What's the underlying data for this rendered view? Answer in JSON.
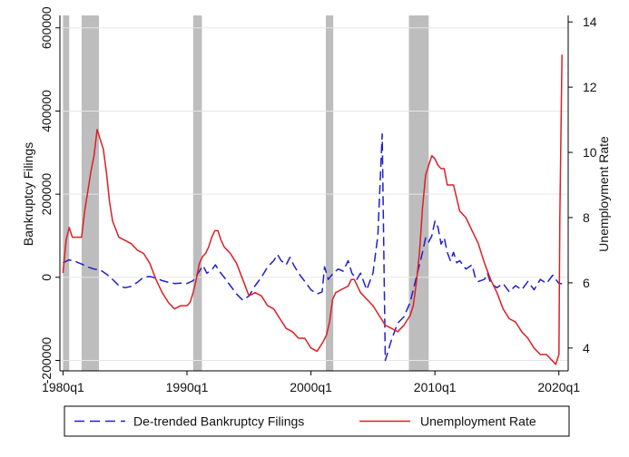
{
  "chart_data": {
    "type": "line",
    "xlabel": "",
    "x_ticks": [
      "1980q1",
      "1990q1",
      "2000q1",
      "2010q1",
      "2020q1"
    ],
    "y_left": {
      "label": "Bankruptcy Filings",
      "lim": [
        -225000,
        630000
      ],
      "ticks": [
        -200000,
        0,
        200000,
        400000,
        600000
      ],
      "tick_labels": [
        "-200000",
        "0",
        "200000",
        "400000",
        "600000"
      ]
    },
    "y_right": {
      "label": "Unemployment Rate",
      "lim": [
        3.3,
        14.2
      ],
      "ticks": [
        4,
        6,
        8,
        10,
        12,
        14
      ],
      "tick_labels": [
        "4",
        "6",
        "8",
        "10",
        "12",
        "14"
      ]
    },
    "recessions": [
      [
        1980.0,
        1980.5
      ],
      [
        1981.5,
        1982.9
      ],
      [
        1990.5,
        1991.2
      ],
      [
        2001.2,
        2001.8
      ],
      [
        2007.9,
        2009.5
      ]
    ],
    "series": [
      {
        "name": "De-trended Bankruptcy Filings",
        "axis": "left",
        "color": "#1f1fcc",
        "dash": "dashed",
        "points": [
          [
            1980.0,
            35000
          ],
          [
            1980.5,
            42000
          ],
          [
            1981.0,
            38000
          ],
          [
            1981.5,
            32000
          ],
          [
            1982.0,
            25000
          ],
          [
            1982.5,
            20000
          ],
          [
            1983.0,
            18000
          ],
          [
            1983.5,
            8000
          ],
          [
            1984.0,
            -5000
          ],
          [
            1984.5,
            -20000
          ],
          [
            1985.0,
            -25000
          ],
          [
            1985.5,
            -22000
          ],
          [
            1986.0,
            -12000
          ],
          [
            1986.5,
            0
          ],
          [
            1987.0,
            2000
          ],
          [
            1987.5,
            -2000
          ],
          [
            1988.0,
            -8000
          ],
          [
            1988.5,
            -12000
          ],
          [
            1989.0,
            -15000
          ],
          [
            1989.5,
            -14000
          ],
          [
            1990.0,
            -15000
          ],
          [
            1990.5,
            -8000
          ],
          [
            1991.0,
            15000
          ],
          [
            1991.3,
            28000
          ],
          [
            1991.6,
            10000
          ],
          [
            1992.0,
            18000
          ],
          [
            1992.3,
            30000
          ],
          [
            1992.6,
            15000
          ],
          [
            1993.0,
            0
          ],
          [
            1993.5,
            -20000
          ],
          [
            1994.0,
            -40000
          ],
          [
            1994.5,
            -55000
          ],
          [
            1995.0,
            -45000
          ],
          [
            1995.5,
            -20000
          ],
          [
            1996.0,
            0
          ],
          [
            1996.5,
            25000
          ],
          [
            1997.0,
            40000
          ],
          [
            1997.3,
            55000
          ],
          [
            1997.6,
            40000
          ],
          [
            1998.0,
            30000
          ],
          [
            1998.3,
            48000
          ],
          [
            1998.6,
            30000
          ],
          [
            1999.0,
            10000
          ],
          [
            1999.5,
            -10000
          ],
          [
            2000.0,
            -30000
          ],
          [
            2000.5,
            -40000
          ],
          [
            2000.9,
            -35000
          ],
          [
            2001.1,
            25000
          ],
          [
            2001.4,
            -5000
          ],
          [
            2001.8,
            10000
          ],
          [
            2002.2,
            20000
          ],
          [
            2002.6,
            15000
          ],
          [
            2003.0,
            40000
          ],
          [
            2003.3,
            10000
          ],
          [
            2003.7,
            -5000
          ],
          [
            2004.0,
            10000
          ],
          [
            2004.5,
            -30000
          ],
          [
            2005.0,
            10000
          ],
          [
            2005.4,
            100000
          ],
          [
            2005.75,
            345000
          ],
          [
            2006.0,
            -200000
          ],
          [
            2006.5,
            -150000
          ],
          [
            2007.0,
            -110000
          ],
          [
            2007.5,
            -95000
          ],
          [
            2008.0,
            -60000
          ],
          [
            2008.5,
            0
          ],
          [
            2009.0,
            60000
          ],
          [
            2009.25,
            95000
          ],
          [
            2009.5,
            85000
          ],
          [
            2009.75,
            100000
          ],
          [
            2010.0,
            135000
          ],
          [
            2010.25,
            120000
          ],
          [
            2010.5,
            80000
          ],
          [
            2010.75,
            95000
          ],
          [
            2011.0,
            60000
          ],
          [
            2011.25,
            40000
          ],
          [
            2011.5,
            60000
          ],
          [
            2011.75,
            35000
          ],
          [
            2012.0,
            40000
          ],
          [
            2012.5,
            20000
          ],
          [
            2013.0,
            30000
          ],
          [
            2013.25,
            0
          ],
          [
            2013.5,
            -10000
          ],
          [
            2014.0,
            -5000
          ],
          [
            2014.25,
            10000
          ],
          [
            2014.5,
            -15000
          ],
          [
            2015.0,
            -25000
          ],
          [
            2015.5,
            -15000
          ],
          [
            2016.0,
            -35000
          ],
          [
            2016.5,
            -20000
          ],
          [
            2017.0,
            -30000
          ],
          [
            2017.5,
            -10000
          ],
          [
            2018.0,
            -30000
          ],
          [
            2018.5,
            -5000
          ],
          [
            2019.0,
            -15000
          ],
          [
            2019.5,
            5000
          ],
          [
            2020.0,
            -15000
          ],
          [
            2020.25,
            -15000
          ]
        ]
      },
      {
        "name": "Unemployment Rate",
        "axis": "right",
        "color": "#dd1f26",
        "dash": "solid",
        "points": [
          [
            1980.0,
            6.3
          ],
          [
            1980.25,
            7.3
          ],
          [
            1980.5,
            7.7
          ],
          [
            1980.75,
            7.4
          ],
          [
            1981.0,
            7.4
          ],
          [
            1981.25,
            7.4
          ],
          [
            1981.5,
            7.4
          ],
          [
            1981.75,
            8.2
          ],
          [
            1982.0,
            8.8
          ],
          [
            1982.25,
            9.4
          ],
          [
            1982.5,
            9.9
          ],
          [
            1982.75,
            10.7
          ],
          [
            1983.0,
            10.4
          ],
          [
            1983.25,
            10.1
          ],
          [
            1983.5,
            9.4
          ],
          [
            1983.75,
            8.5
          ],
          [
            1984.0,
            7.9
          ],
          [
            1984.5,
            7.4
          ],
          [
            1985.0,
            7.3
          ],
          [
            1985.5,
            7.2
          ],
          [
            1986.0,
            7.0
          ],
          [
            1986.5,
            6.9
          ],
          [
            1987.0,
            6.6
          ],
          [
            1987.5,
            6.1
          ],
          [
            1988.0,
            5.7
          ],
          [
            1988.5,
            5.4
          ],
          [
            1989.0,
            5.2
          ],
          [
            1989.5,
            5.3
          ],
          [
            1990.0,
            5.3
          ],
          [
            1990.25,
            5.4
          ],
          [
            1990.5,
            5.7
          ],
          [
            1990.75,
            6.1
          ],
          [
            1991.0,
            6.6
          ],
          [
            1991.25,
            6.8
          ],
          [
            1991.5,
            6.9
          ],
          [
            1991.75,
            7.1
          ],
          [
            1992.0,
            7.4
          ],
          [
            1992.25,
            7.6
          ],
          [
            1992.5,
            7.6
          ],
          [
            1992.75,
            7.3
          ],
          [
            1993.0,
            7.1
          ],
          [
            1993.5,
            6.9
          ],
          [
            1994.0,
            6.6
          ],
          [
            1994.5,
            6.1
          ],
          [
            1995.0,
            5.6
          ],
          [
            1995.5,
            5.7
          ],
          [
            1996.0,
            5.6
          ],
          [
            1996.5,
            5.3
          ],
          [
            1997.0,
            5.2
          ],
          [
            1997.5,
            4.9
          ],
          [
            1998.0,
            4.6
          ],
          [
            1998.5,
            4.5
          ],
          [
            1999.0,
            4.3
          ],
          [
            1999.5,
            4.3
          ],
          [
            2000.0,
            4.0
          ],
          [
            2000.5,
            3.9
          ],
          [
            2001.0,
            4.2
          ],
          [
            2001.25,
            4.4
          ],
          [
            2001.5,
            4.8
          ],
          [
            2001.75,
            5.5
          ],
          [
            2002.0,
            5.7
          ],
          [
            2002.5,
            5.8
          ],
          [
            2003.0,
            5.9
          ],
          [
            2003.25,
            6.1
          ],
          [
            2003.5,
            6.1
          ],
          [
            2004.0,
            5.7
          ],
          [
            2004.5,
            5.5
          ],
          [
            2005.0,
            5.3
          ],
          [
            2005.5,
            5.0
          ],
          [
            2006.0,
            4.7
          ],
          [
            2006.5,
            4.6
          ],
          [
            2007.0,
            4.5
          ],
          [
            2007.5,
            4.7
          ],
          [
            2008.0,
            5.0
          ],
          [
            2008.25,
            5.3
          ],
          [
            2008.5,
            6.0
          ],
          [
            2008.75,
            6.9
          ],
          [
            2009.0,
            8.3
          ],
          [
            2009.25,
            9.3
          ],
          [
            2009.5,
            9.6
          ],
          [
            2009.75,
            9.9
          ],
          [
            2010.0,
            9.8
          ],
          [
            2010.25,
            9.6
          ],
          [
            2010.5,
            9.5
          ],
          [
            2010.75,
            9.5
          ],
          [
            2011.0,
            9.0
          ],
          [
            2011.5,
            9.0
          ],
          [
            2012.0,
            8.2
          ],
          [
            2012.5,
            8.0
          ],
          [
            2013.0,
            7.6
          ],
          [
            2013.5,
            7.2
          ],
          [
            2014.0,
            6.6
          ],
          [
            2014.5,
            6.1
          ],
          [
            2015.0,
            5.7
          ],
          [
            2015.5,
            5.2
          ],
          [
            2016.0,
            4.9
          ],
          [
            2016.5,
            4.8
          ],
          [
            2017.0,
            4.5
          ],
          [
            2017.5,
            4.3
          ],
          [
            2018.0,
            4.0
          ],
          [
            2018.5,
            3.8
          ],
          [
            2019.0,
            3.8
          ],
          [
            2019.5,
            3.6
          ],
          [
            2019.75,
            3.5
          ],
          [
            2020.0,
            3.8
          ],
          [
            2020.08,
            8.0
          ],
          [
            2020.25,
            13.0
          ]
        ]
      }
    ],
    "legend": {
      "position": "bottom"
    },
    "grid": true
  }
}
